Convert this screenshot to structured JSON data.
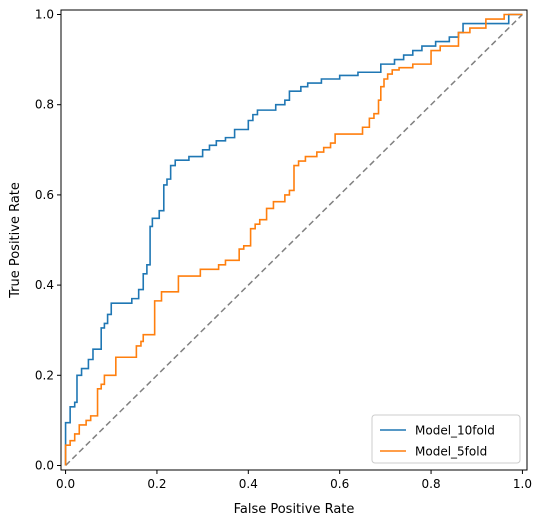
{
  "chart_data": {
    "type": "line",
    "title": "",
    "xlabel": "False Positive Rate",
    "ylabel": "True Positive Rate",
    "xlim": [
      -0.01,
      1.01
    ],
    "ylim": [
      -0.01,
      1.01
    ],
    "xticks": [
      0.0,
      0.2,
      0.4,
      0.6,
      0.8,
      1.0
    ],
    "yticks": [
      0.0,
      0.2,
      0.4,
      0.6,
      0.8,
      1.0
    ],
    "xtick_labels": [
      "0.0",
      "0.2",
      "0.4",
      "0.6",
      "0.8",
      "1.0"
    ],
    "ytick_labels": [
      "0.0",
      "0.2",
      "0.4",
      "0.6",
      "0.8",
      "1.0"
    ],
    "grid": false,
    "legend_position": "lower-right",
    "reference_line": {
      "x": [
        0,
        1
      ],
      "y": [
        0,
        1
      ],
      "style": "dashed",
      "color": "#808080"
    },
    "series": [
      {
        "name": "Model_10fold",
        "color": "#1f77b4",
        "step": true,
        "points": [
          [
            0.0,
            0.0
          ],
          [
            0.0,
            0.095
          ],
          [
            0.01,
            0.095
          ],
          [
            0.01,
            0.13
          ],
          [
            0.02,
            0.13
          ],
          [
            0.02,
            0.14
          ],
          [
            0.025,
            0.14
          ],
          [
            0.025,
            0.2
          ],
          [
            0.035,
            0.2
          ],
          [
            0.035,
            0.215
          ],
          [
            0.05,
            0.215
          ],
          [
            0.05,
            0.235
          ],
          [
            0.06,
            0.235
          ],
          [
            0.06,
            0.258
          ],
          [
            0.078,
            0.258
          ],
          [
            0.078,
            0.305
          ],
          [
            0.085,
            0.305
          ],
          [
            0.085,
            0.315
          ],
          [
            0.092,
            0.315
          ],
          [
            0.092,
            0.335
          ],
          [
            0.1,
            0.335
          ],
          [
            0.1,
            0.36
          ],
          [
            0.145,
            0.36
          ],
          [
            0.145,
            0.37
          ],
          [
            0.16,
            0.37
          ],
          [
            0.16,
            0.39
          ],
          [
            0.17,
            0.39
          ],
          [
            0.17,
            0.425
          ],
          [
            0.178,
            0.425
          ],
          [
            0.178,
            0.445
          ],
          [
            0.185,
            0.445
          ],
          [
            0.185,
            0.53
          ],
          [
            0.19,
            0.53
          ],
          [
            0.19,
            0.548
          ],
          [
            0.205,
            0.548
          ],
          [
            0.205,
            0.565
          ],
          [
            0.215,
            0.565
          ],
          [
            0.215,
            0.622
          ],
          [
            0.222,
            0.622
          ],
          [
            0.222,
            0.635
          ],
          [
            0.23,
            0.635
          ],
          [
            0.23,
            0.665
          ],
          [
            0.24,
            0.665
          ],
          [
            0.24,
            0.677
          ],
          [
            0.27,
            0.677
          ],
          [
            0.27,
            0.685
          ],
          [
            0.3,
            0.685
          ],
          [
            0.3,
            0.7
          ],
          [
            0.315,
            0.7
          ],
          [
            0.315,
            0.71
          ],
          [
            0.33,
            0.71
          ],
          [
            0.33,
            0.72
          ],
          [
            0.35,
            0.72
          ],
          [
            0.35,
            0.727
          ],
          [
            0.37,
            0.727
          ],
          [
            0.37,
            0.745
          ],
          [
            0.4,
            0.745
          ],
          [
            0.4,
            0.765
          ],
          [
            0.41,
            0.765
          ],
          [
            0.41,
            0.778
          ],
          [
            0.42,
            0.778
          ],
          [
            0.42,
            0.788
          ],
          [
            0.46,
            0.788
          ],
          [
            0.46,
            0.8
          ],
          [
            0.48,
            0.8
          ],
          [
            0.48,
            0.81
          ],
          [
            0.49,
            0.81
          ],
          [
            0.49,
            0.83
          ],
          [
            0.515,
            0.83
          ],
          [
            0.515,
            0.84
          ],
          [
            0.53,
            0.84
          ],
          [
            0.53,
            0.848
          ],
          [
            0.56,
            0.848
          ],
          [
            0.56,
            0.857
          ],
          [
            0.6,
            0.857
          ],
          [
            0.6,
            0.865
          ],
          [
            0.64,
            0.865
          ],
          [
            0.64,
            0.872
          ],
          [
            0.69,
            0.872
          ],
          [
            0.69,
            0.89
          ],
          [
            0.72,
            0.89
          ],
          [
            0.72,
            0.9
          ],
          [
            0.74,
            0.9
          ],
          [
            0.74,
            0.91
          ],
          [
            0.76,
            0.91
          ],
          [
            0.76,
            0.92
          ],
          [
            0.78,
            0.92
          ],
          [
            0.78,
            0.93
          ],
          [
            0.81,
            0.93
          ],
          [
            0.81,
            0.94
          ],
          [
            0.84,
            0.94
          ],
          [
            0.84,
            0.95
          ],
          [
            0.86,
            0.95
          ],
          [
            0.86,
            0.96
          ],
          [
            0.87,
            0.96
          ],
          [
            0.87,
            0.98
          ],
          [
            0.97,
            0.98
          ],
          [
            0.97,
            1.0
          ],
          [
            1.0,
            1.0
          ]
        ]
      },
      {
        "name": "Model_5fold",
        "color": "#ff7f0e",
        "step": true,
        "points": [
          [
            0.0,
            0.0
          ],
          [
            0.0,
            0.045
          ],
          [
            0.01,
            0.045
          ],
          [
            0.01,
            0.055
          ],
          [
            0.02,
            0.055
          ],
          [
            0.02,
            0.07
          ],
          [
            0.03,
            0.07
          ],
          [
            0.03,
            0.09
          ],
          [
            0.045,
            0.09
          ],
          [
            0.045,
            0.1
          ],
          [
            0.055,
            0.1
          ],
          [
            0.055,
            0.11
          ],
          [
            0.07,
            0.11
          ],
          [
            0.07,
            0.17
          ],
          [
            0.078,
            0.17
          ],
          [
            0.078,
            0.18
          ],
          [
            0.085,
            0.18
          ],
          [
            0.085,
            0.2
          ],
          [
            0.11,
            0.2
          ],
          [
            0.11,
            0.24
          ],
          [
            0.155,
            0.24
          ],
          [
            0.155,
            0.265
          ],
          [
            0.165,
            0.265
          ],
          [
            0.165,
            0.275
          ],
          [
            0.17,
            0.275
          ],
          [
            0.17,
            0.29
          ],
          [
            0.195,
            0.29
          ],
          [
            0.195,
            0.365
          ],
          [
            0.21,
            0.365
          ],
          [
            0.21,
            0.385
          ],
          [
            0.247,
            0.385
          ],
          [
            0.247,
            0.42
          ],
          [
            0.295,
            0.42
          ],
          [
            0.295,
            0.435
          ],
          [
            0.335,
            0.435
          ],
          [
            0.335,
            0.445
          ],
          [
            0.35,
            0.445
          ],
          [
            0.35,
            0.455
          ],
          [
            0.38,
            0.455
          ],
          [
            0.38,
            0.48
          ],
          [
            0.39,
            0.48
          ],
          [
            0.39,
            0.487
          ],
          [
            0.405,
            0.487
          ],
          [
            0.405,
            0.525
          ],
          [
            0.415,
            0.525
          ],
          [
            0.415,
            0.535
          ],
          [
            0.425,
            0.535
          ],
          [
            0.425,
            0.545
          ],
          [
            0.44,
            0.545
          ],
          [
            0.44,
            0.57
          ],
          [
            0.455,
            0.57
          ],
          [
            0.455,
            0.585
          ],
          [
            0.48,
            0.585
          ],
          [
            0.48,
            0.6
          ],
          [
            0.49,
            0.6
          ],
          [
            0.49,
            0.61
          ],
          [
            0.5,
            0.61
          ],
          [
            0.5,
            0.665
          ],
          [
            0.51,
            0.665
          ],
          [
            0.51,
            0.675
          ],
          [
            0.525,
            0.675
          ],
          [
            0.525,
            0.685
          ],
          [
            0.55,
            0.685
          ],
          [
            0.55,
            0.695
          ],
          [
            0.565,
            0.695
          ],
          [
            0.565,
            0.705
          ],
          [
            0.58,
            0.705
          ],
          [
            0.58,
            0.715
          ],
          [
            0.59,
            0.715
          ],
          [
            0.59,
            0.735
          ],
          [
            0.65,
            0.735
          ],
          [
            0.65,
            0.75
          ],
          [
            0.665,
            0.75
          ],
          [
            0.665,
            0.77
          ],
          [
            0.675,
            0.77
          ],
          [
            0.675,
            0.78
          ],
          [
            0.685,
            0.78
          ],
          [
            0.685,
            0.81
          ],
          [
            0.69,
            0.81
          ],
          [
            0.69,
            0.84
          ],
          [
            0.697,
            0.84
          ],
          [
            0.697,
            0.857
          ],
          [
            0.705,
            0.857
          ],
          [
            0.705,
            0.868
          ],
          [
            0.715,
            0.868
          ],
          [
            0.715,
            0.877
          ],
          [
            0.73,
            0.877
          ],
          [
            0.73,
            0.882
          ],
          [
            0.76,
            0.882
          ],
          [
            0.76,
            0.89
          ],
          [
            0.8,
            0.89
          ],
          [
            0.8,
            0.92
          ],
          [
            0.82,
            0.92
          ],
          [
            0.82,
            0.93
          ],
          [
            0.86,
            0.93
          ],
          [
            0.86,
            0.96
          ],
          [
            0.885,
            0.96
          ],
          [
            0.885,
            0.97
          ],
          [
            0.92,
            0.97
          ],
          [
            0.92,
            0.99
          ],
          [
            0.96,
            0.99
          ],
          [
            0.96,
            1.0
          ],
          [
            1.0,
            1.0
          ]
        ]
      }
    ]
  }
}
